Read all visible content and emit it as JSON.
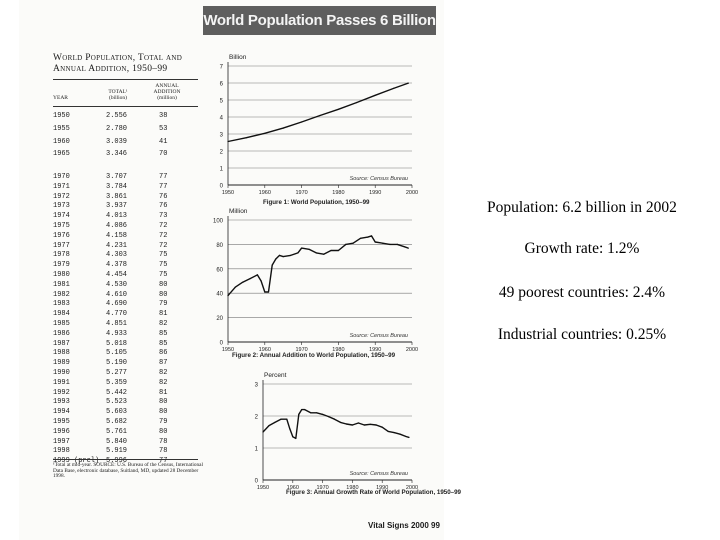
{
  "page_title": "World Population Passes 6 Billion",
  "table": {
    "title_line1": "World Population, Total and",
    "title_line2": "Annual Addition, 1950–99",
    "headers": {
      "year": "Year",
      "total": "Total¹",
      "total_unit": "(billion)",
      "addition": "Annual Addition",
      "addition_unit": "(million)"
    },
    "groups": [
      {
        "years": [
          "1950",
          "1955",
          "1960",
          "1965"
        ],
        "totals": [
          "2.556",
          "2.780",
          "3.039",
          "3.346"
        ],
        "additions": [
          "38",
          "53",
          "41",
          "70"
        ]
      },
      {
        "years": [
          "1970",
          "1971",
          "1972",
          "1973",
          "1974",
          "1975",
          "1976",
          "1977",
          "1978",
          "1979",
          "1980",
          "1981",
          "1982",
          "1983",
          "1984",
          "1985",
          "1986",
          "1987",
          "1988",
          "1989",
          "1990",
          "1991",
          "1992",
          "1993",
          "1994",
          "1995",
          "1996",
          "1997",
          "1998",
          "1999 (prel)"
        ],
        "totals": [
          "3.707",
          "3.784",
          "3.861",
          "3.937",
          "4.013",
          "4.086",
          "4.158",
          "4.231",
          "4.303",
          "4.378",
          "4.454",
          "4.530",
          "4.610",
          "4.690",
          "4.770",
          "4.851",
          "4.933",
          "5.018",
          "5.105",
          "5.190",
          "5.277",
          "5.359",
          "5.442",
          "5.523",
          "5.603",
          "5.682",
          "5.761",
          "5.840",
          "5.919",
          "5.996"
        ],
        "additions": [
          "77",
          "77",
          "76",
          "76",
          "73",
          "72",
          "72",
          "72",
          "75",
          "75",
          "75",
          "80",
          "80",
          "79",
          "81",
          "82",
          "85",
          "85",
          "86",
          "87",
          "82",
          "82",
          "81",
          "80",
          "80",
          "79",
          "80",
          "78",
          "78",
          "77"
        ]
      }
    ],
    "footnote": "¹Total at mid-year. SOURCE: U.S. Bureau of the Census, International Data Base, electronic database, Suitland, MD, updated 28 December 1998."
  },
  "chart_data": [
    {
      "type": "line",
      "caption": "Figure 1: World Population, 1950–99",
      "ylabel": "Billion",
      "source": "Source: Census Bureau",
      "xlim": [
        1950,
        2000
      ],
      "ylim": [
        0,
        7
      ],
      "xticks": [
        "1950",
        "1960",
        "1970",
        "1980",
        "1990",
        "2000"
      ],
      "yticks": [
        "0",
        "1",
        "2",
        "3",
        "4",
        "5",
        "6",
        "7"
      ],
      "grid": true,
      "series": [
        {
          "x": [
            1950,
            1955,
            1960,
            1965,
            1970,
            1975,
            1980,
            1985,
            1990,
            1995,
            1999
          ],
          "values": [
            2.556,
            2.78,
            3.039,
            3.346,
            3.707,
            4.086,
            4.454,
            4.851,
            5.277,
            5.682,
            5.996
          ]
        }
      ]
    },
    {
      "type": "line",
      "caption": "Figure 2: Annual Addition to World Population, 1950–99",
      "ylabel": "Million",
      "source": "Source: Census Bureau",
      "xlim": [
        1950,
        2000
      ],
      "ylim": [
        0,
        100
      ],
      "xticks": [
        "1950",
        "1960",
        "1970",
        "1980",
        "1990",
        "2000"
      ],
      "yticks": [
        "0",
        "20",
        "40",
        "60",
        "80",
        "100"
      ],
      "grid": true,
      "series": [
        {
          "x": [
            1950,
            1952,
            1954,
            1956,
            1958,
            1959,
            1960,
            1961,
            1962,
            1963,
            1964,
            1965,
            1967,
            1969,
            1970,
            1972,
            1974,
            1976,
            1978,
            1980,
            1982,
            1984,
            1986,
            1988,
            1989,
            1990,
            1992,
            1994,
            1996,
            1998,
            1999
          ],
          "values": [
            38,
            45,
            49,
            52,
            55,
            50,
            41,
            41,
            63,
            68,
            71,
            70,
            71,
            73,
            77,
            76,
            73,
            72,
            75,
            75,
            80,
            81,
            85,
            86,
            87,
            82,
            81,
            80,
            80,
            78,
            77
          ]
        }
      ]
    },
    {
      "type": "line",
      "caption": "Figure 3: Annual Growth Rate of World Population, 1950–99",
      "ylabel": "Percent",
      "source": "Source: Census Bureau",
      "xlim": [
        1950,
        2000
      ],
      "ylim": [
        0,
        3
      ],
      "xticks": [
        "1950",
        "1960",
        "1970",
        "1980",
        "1990",
        "2000"
      ],
      "yticks": [
        "0",
        "1",
        "2",
        "3"
      ],
      "grid": true,
      "series": [
        {
          "x": [
            1950,
            1952,
            1954,
            1956,
            1958,
            1959,
            1960,
            1961,
            1962,
            1963,
            1964,
            1966,
            1968,
            1970,
            1972,
            1974,
            1976,
            1978,
            1980,
            1982,
            1984,
            1986,
            1988,
            1990,
            1992,
            1994,
            1996,
            1998,
            1999
          ],
          "values": [
            1.5,
            1.7,
            1.8,
            1.9,
            1.9,
            1.6,
            1.35,
            1.3,
            2.05,
            2.2,
            2.2,
            2.1,
            2.1,
            2.05,
            1.98,
            1.9,
            1.8,
            1.75,
            1.72,
            1.78,
            1.72,
            1.74,
            1.72,
            1.65,
            1.52,
            1.48,
            1.43,
            1.36,
            1.33
          ]
        }
      ]
    }
  ],
  "side_notes": [
    "Population: 6.2 billion in 2002",
    "Growth rate: 1.2%",
    "49 poorest countries: 2.4%",
    "Industrial countries: 0.25%"
  ],
  "page_footer": "Vital Signs 2000  99"
}
